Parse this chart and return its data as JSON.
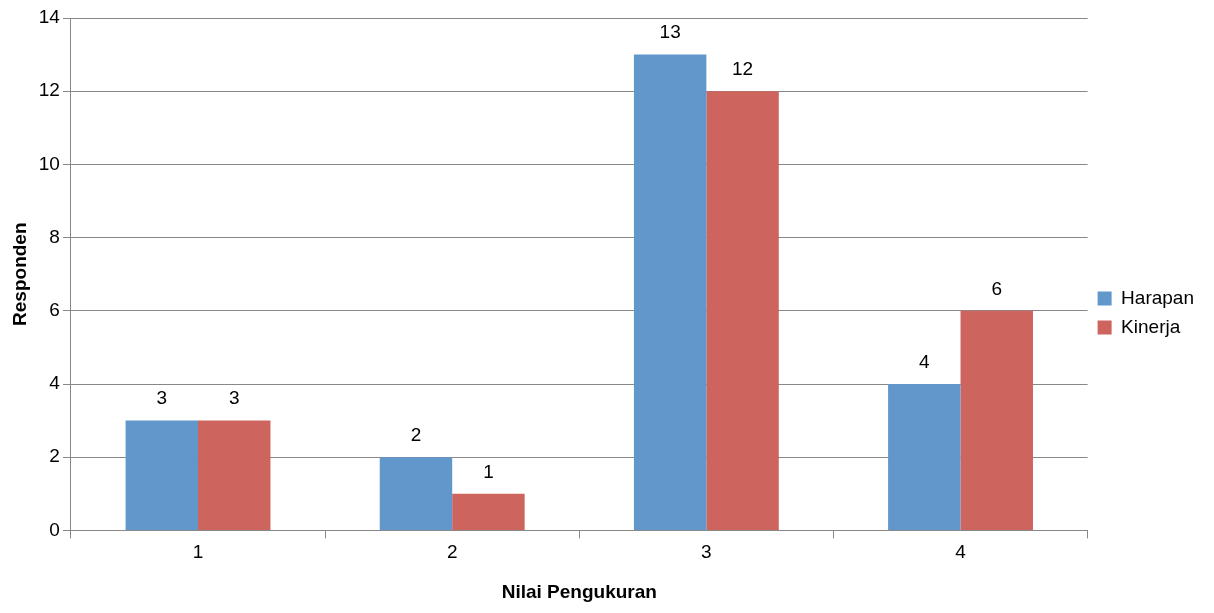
{
  "chart_data": {
    "type": "bar",
    "xlabel": "Nilai Pengukuran",
    "ylabel": "Responden",
    "categories": [
      "1",
      "2",
      "3",
      "4"
    ],
    "series": [
      {
        "name": "Harapan",
        "color": "#6197cb",
        "values": [
          3,
          2,
          13,
          4
        ]
      },
      {
        "name": "Kinerja",
        "color": "#cd645e",
        "values": [
          3,
          1,
          12,
          6
        ]
      }
    ],
    "ylim": [
      0,
      14
    ],
    "yticks": [
      0,
      2,
      4,
      6,
      8,
      10,
      12,
      14
    ],
    "grid": "y",
    "legend": "right",
    "data_labels": true
  }
}
